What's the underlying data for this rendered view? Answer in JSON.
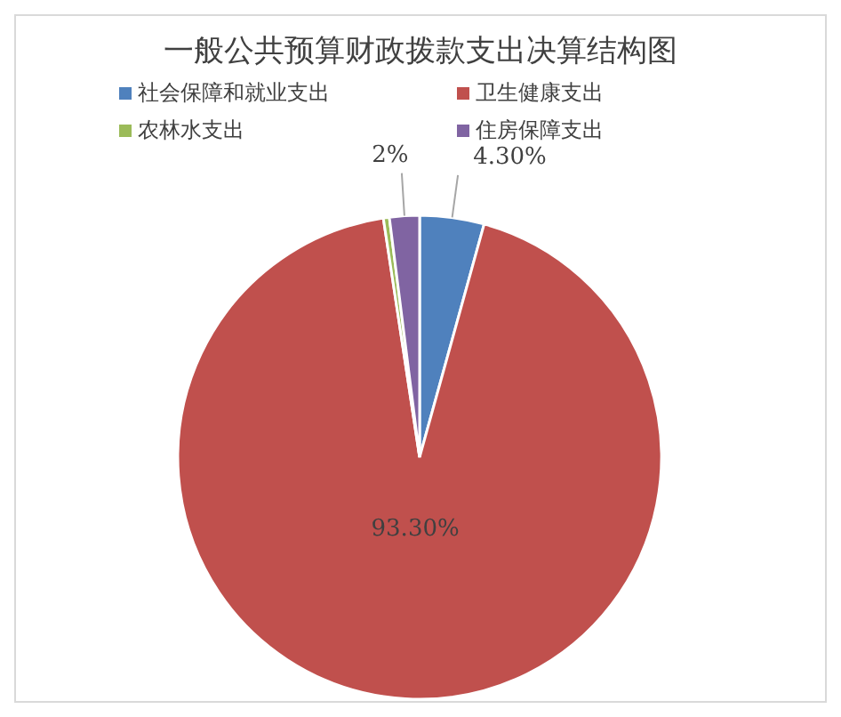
{
  "chart_data": {
    "type": "pie",
    "title": "一般公共预算财政拨款支出决算结构图",
    "categories": [
      "社会保障和就业支出",
      "卫生健康支出",
      "农林水支出",
      "住房保障支出"
    ],
    "values": [
      4.3,
      93.3,
      0.4,
      2
    ],
    "colors": [
      "#4f81bd",
      "#c0504d",
      "#9bbb59",
      "#8064a2"
    ],
    "value_labels": [
      "4.30%",
      "93.30%",
      null,
      "2%"
    ],
    "legend": "top"
  }
}
